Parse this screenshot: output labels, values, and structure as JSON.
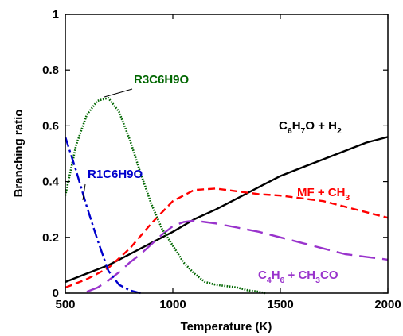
{
  "chart_data": {
    "type": "line",
    "xlabel": "Temperature (K)",
    "ylabel": "Branching ratio",
    "xlim": [
      500,
      2000
    ],
    "ylim": [
      0,
      1
    ],
    "xticks": [
      "500",
      "1000",
      "1500",
      "2000"
    ],
    "yticks": [
      "0",
      "0.2",
      "0.4",
      "0.6",
      "0.8",
      "1"
    ],
    "grid": false,
    "series": [
      {
        "name": "C6H7O + H2",
        "color": "#000000",
        "style": "solid",
        "x": [
          500,
          600,
          700,
          800,
          900,
          1000,
          1100,
          1200,
          1300,
          1400,
          1500,
          1600,
          1700,
          1800,
          1900,
          2000
        ],
        "y": [
          0.04,
          0.07,
          0.1,
          0.14,
          0.18,
          0.22,
          0.265,
          0.3,
          0.34,
          0.38,
          0.42,
          0.45,
          0.48,
          0.51,
          0.54,
          0.56
        ]
      },
      {
        "name": "MF + CH3",
        "color": "#ff0000",
        "style": "dash",
        "x": [
          500,
          600,
          700,
          800,
          900,
          1000,
          1100,
          1200,
          1300,
          1400,
          1500,
          1600,
          1700,
          1800,
          1900,
          2000
        ],
        "y": [
          0.02,
          0.05,
          0.09,
          0.16,
          0.25,
          0.33,
          0.37,
          0.375,
          0.365,
          0.355,
          0.35,
          0.34,
          0.33,
          0.31,
          0.29,
          0.27
        ]
      },
      {
        "name": "C4H6 + CH3CO",
        "color": "#9933cc",
        "style": "longdash",
        "x": [
          600,
          650,
          700,
          750,
          800,
          850,
          900,
          950,
          1000,
          1050,
          1100,
          1150,
          1200,
          1300,
          1400,
          1500,
          1600,
          1700,
          1800,
          1900,
          2000
        ],
        "y": [
          0.005,
          0.02,
          0.045,
          0.075,
          0.11,
          0.14,
          0.175,
          0.21,
          0.24,
          0.255,
          0.26,
          0.255,
          0.25,
          0.235,
          0.22,
          0.2,
          0.18,
          0.16,
          0.14,
          0.13,
          0.12
        ]
      },
      {
        "name": "R3C6H9O",
        "color": "#006600",
        "style": "dot",
        "x": [
          500,
          550,
          600,
          650,
          700,
          750,
          800,
          850,
          900,
          950,
          1000,
          1050,
          1100,
          1150,
          1200,
          1250,
          1300,
          1350,
          1400,
          1430
        ],
        "y": [
          0.35,
          0.53,
          0.64,
          0.69,
          0.7,
          0.65,
          0.55,
          0.43,
          0.32,
          0.23,
          0.17,
          0.11,
          0.07,
          0.04,
          0.03,
          0.025,
          0.02,
          0.01,
          0.005,
          0.0
        ]
      },
      {
        "name": "R1C6H9O",
        "color": "#0000cc",
        "style": "dashdot",
        "x": [
          500,
          550,
          600,
          650,
          700,
          750,
          800,
          850
        ],
        "y": [
          0.56,
          0.44,
          0.31,
          0.19,
          0.08,
          0.03,
          0.01,
          0.0
        ]
      }
    ],
    "annotations": [
      {
        "series": 0,
        "parts": [
          "C",
          "6",
          "H",
          "7",
          "O + H",
          "2"
        ]
      },
      {
        "series": 1,
        "parts": [
          "MF + CH",
          "3"
        ]
      },
      {
        "series": 2,
        "parts": [
          "C",
          "4",
          "H",
          "6",
          " + CH",
          "3",
          "CO"
        ]
      },
      {
        "series": 3,
        "parts": [
          "R3C6H9O"
        ]
      },
      {
        "series": 4,
        "parts": [
          "R1C6H9O"
        ]
      }
    ]
  }
}
